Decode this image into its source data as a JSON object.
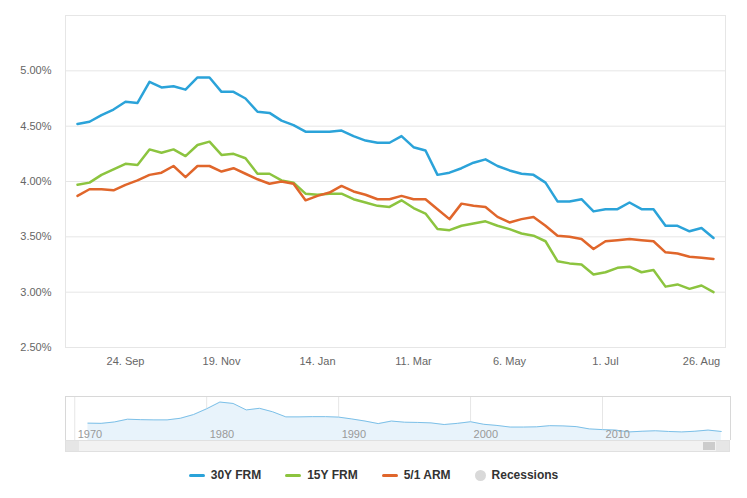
{
  "chart_data": [
    {
      "type": "line",
      "categories": [
        null,
        null,
        null,
        null,
        "24. Sep",
        null,
        null,
        null,
        null,
        null,
        null,
        null,
        "19. Nov",
        null,
        null,
        null,
        null,
        null,
        null,
        null,
        "14. Jan",
        null,
        null,
        null,
        null,
        null,
        null,
        null,
        "11. Mar",
        null,
        null,
        null,
        null,
        null,
        null,
        null,
        "6. May",
        null,
        null,
        null,
        null,
        null,
        null,
        null,
        "1. Jul",
        null,
        null,
        null,
        null,
        null,
        null,
        null,
        "26. Aug",
        null
      ],
      "series": [
        {
          "name": "30Y FRM",
          "color": "#2ba3d9",
          "values": [
            4.52,
            4.54,
            4.6,
            4.65,
            4.72,
            4.71,
            4.9,
            4.85,
            4.86,
            4.83,
            4.94,
            4.94,
            4.81,
            4.81,
            4.75,
            4.63,
            4.62,
            4.55,
            4.51,
            4.45,
            4.45,
            4.45,
            4.46,
            4.41,
            4.37,
            4.35,
            4.35,
            4.41,
            4.31,
            4.28,
            4.06,
            4.08,
            4.12,
            4.17,
            4.2,
            4.14,
            4.1,
            4.07,
            4.06,
            3.99,
            3.82,
            3.82,
            3.84,
            3.73,
            3.75,
            3.75,
            3.81,
            3.75,
            3.75,
            3.6,
            3.6,
            3.55,
            3.58,
            3.49
          ]
        },
        {
          "name": "15Y FRM",
          "color": "#8cc43f",
          "values": [
            3.97,
            3.99,
            4.06,
            4.11,
            4.16,
            4.15,
            4.29,
            4.26,
            4.29,
            4.23,
            4.33,
            4.36,
            4.24,
            4.25,
            4.21,
            4.07,
            4.07,
            4.01,
            3.99,
            3.89,
            3.88,
            3.89,
            3.89,
            3.84,
            3.81,
            3.78,
            3.77,
            3.83,
            3.76,
            3.71,
            3.57,
            3.56,
            3.6,
            3.62,
            3.64,
            3.6,
            3.57,
            3.53,
            3.51,
            3.46,
            3.28,
            3.26,
            3.25,
            3.16,
            3.18,
            3.22,
            3.23,
            3.18,
            3.2,
            3.05,
            3.07,
            3.03,
            3.06,
            3.0
          ]
        },
        {
          "name": "5/1 ARM",
          "color": "#e0662b",
          "values": [
            3.87,
            3.93,
            3.93,
            3.92,
            3.97,
            4.01,
            4.06,
            4.08,
            4.14,
            4.04,
            4.14,
            4.14,
            4.09,
            4.12,
            4.07,
            4.02,
            3.98,
            4.0,
            3.98,
            3.83,
            3.87,
            3.9,
            3.96,
            3.91,
            3.88,
            3.84,
            3.84,
            3.87,
            3.84,
            3.84,
            3.75,
            3.66,
            3.8,
            3.78,
            3.77,
            3.68,
            3.63,
            3.66,
            3.68,
            3.6,
            3.51,
            3.5,
            3.48,
            3.39,
            3.46,
            3.47,
            3.48,
            3.47,
            3.46,
            3.36,
            3.35,
            3.32,
            3.31,
            3.3
          ]
        }
      ],
      "legend_extra": [
        {
          "name": "Recessions",
          "color": "#d9d9d9",
          "marker": "circle"
        }
      ],
      "ylim": [
        2.5,
        5.5
      ],
      "yticks": [
        {
          "value": 2.5,
          "label": "2.50%"
        },
        {
          "value": 3,
          "label": "3.00%"
        },
        {
          "value": 3.5,
          "label": "3.50%"
        },
        {
          "value": 4,
          "label": "4.00%"
        },
        {
          "value": 4.5,
          "label": "4.50%"
        },
        {
          "value": 5,
          "label": "5.00%"
        }
      ],
      "grid": true,
      "legend": "bottom"
    },
    {
      "type": "area",
      "x": [
        1971,
        1972,
        1973,
        1974,
        1975,
        1976,
        1977,
        1978,
        1979,
        1980,
        1981,
        1982,
        1983,
        1984,
        1985,
        1986,
        1987,
        1988,
        1989,
        1990,
        1991,
        1992,
        1993,
        1994,
        1995,
        1996,
        1997,
        1998,
        1999,
        2000,
        2001,
        2002,
        2003,
        2004,
        2005,
        2006,
        2007,
        2008,
        2009,
        2010,
        2011,
        2012,
        2013,
        2014,
        2015,
        2016,
        2017,
        2018,
        2019
      ],
      "series": [
        {
          "name": "30Y FRM",
          "color": "#7cc0e8",
          "values": [
            7.5,
            7.4,
            8.0,
            9.2,
            9.0,
            8.9,
            8.9,
            9.6,
            11.2,
            13.7,
            16.6,
            16.0,
            13.2,
            13.9,
            12.4,
            10.2,
            10.2,
            10.3,
            10.3,
            10.1,
            9.3,
            8.4,
            7.3,
            8.4,
            7.9,
            7.8,
            7.6,
            6.9,
            7.4,
            8.1,
            7.0,
            6.5,
            5.8,
            5.8,
            5.9,
            6.4,
            6.3,
            6.0,
            5.0,
            4.7,
            4.5,
            3.7,
            4.0,
            4.2,
            3.9,
            3.7,
            4.0,
            4.5,
            3.9
          ]
        }
      ],
      "xlim": [
        1969.3,
        2019.7
      ],
      "xticks": [
        1970,
        1980,
        1990,
        2000,
        2010
      ],
      "ylim": [
        0,
        19
      ],
      "grid": true,
      "tick_labels": "x"
    }
  ]
}
